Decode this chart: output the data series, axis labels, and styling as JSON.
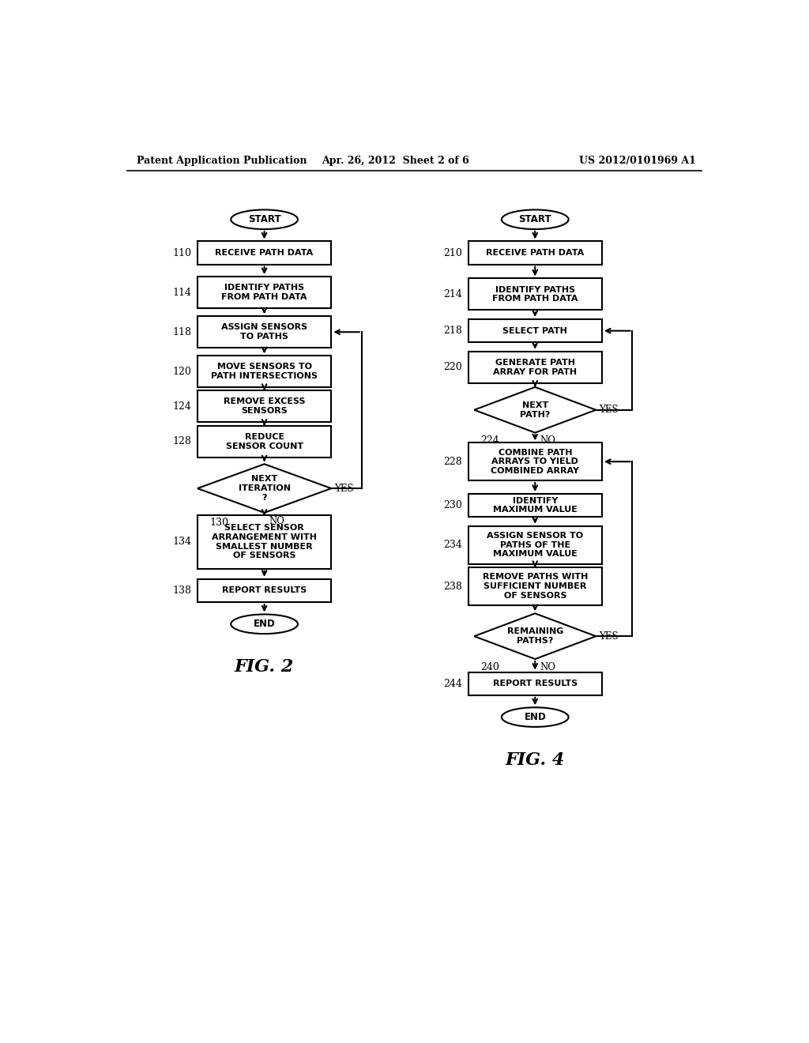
{
  "bg_color": "#ffffff",
  "header_left": "Patent Application Publication",
  "header_center": "Apr. 26, 2012  Sheet 2 of 6",
  "header_right": "US 2012/0101969 A1",
  "fig2_title": "FIG. 2",
  "fig4_title": "FIG. 4"
}
